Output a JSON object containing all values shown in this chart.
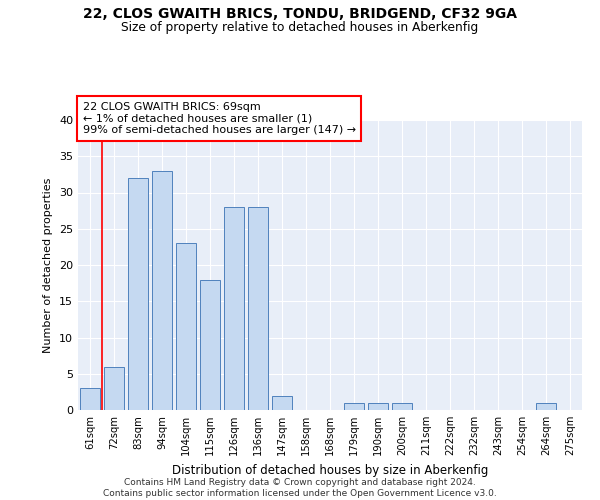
{
  "title_line1": "22, CLOS GWAITH BRICS, TONDU, BRIDGEND, CF32 9GA",
  "title_line2": "Size of property relative to detached houses in Aberkenfig",
  "xlabel": "Distribution of detached houses by size in Aberkenfig",
  "ylabel": "Number of detached properties",
  "bar_labels": [
    "61sqm",
    "72sqm",
    "83sqm",
    "94sqm",
    "104sqm",
    "115sqm",
    "126sqm",
    "136sqm",
    "147sqm",
    "158sqm",
    "168sqm",
    "179sqm",
    "190sqm",
    "200sqm",
    "211sqm",
    "222sqm",
    "232sqm",
    "243sqm",
    "254sqm",
    "264sqm",
    "275sqm"
  ],
  "bar_values": [
    3,
    6,
    32,
    33,
    23,
    18,
    28,
    28,
    2,
    0,
    0,
    1,
    1,
    1,
    0,
    0,
    0,
    0,
    0,
    1,
    0
  ],
  "bar_color": "#c5d9f1",
  "bar_edge_color": "#4f81bd",
  "annotation_line1": "22 CLOS GWAITH BRICS: 69sqm",
  "annotation_line2": "← 1% of detached houses are smaller (1)",
  "annotation_line3": "99% of semi-detached houses are larger (147) →",
  "red_line_x": 0.5,
  "ylim": [
    0,
    40
  ],
  "yticks": [
    0,
    5,
    10,
    15,
    20,
    25,
    30,
    35,
    40
  ],
  "bg_color": "#e8eef8",
  "footer_line1": "Contains HM Land Registry data © Crown copyright and database right 2024.",
  "footer_line2": "Contains public sector information licensed under the Open Government Licence v3.0."
}
